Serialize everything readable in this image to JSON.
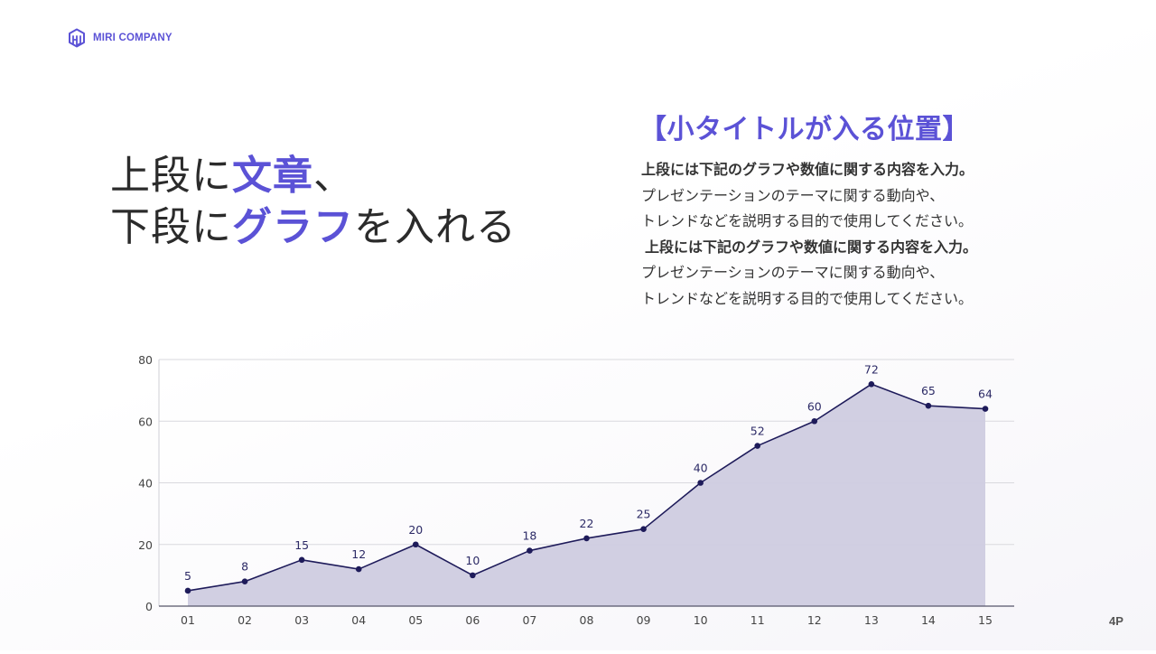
{
  "brand": {
    "logo_icon": "hexagon-hw-logo-icon",
    "name": "MIRI COMPANY",
    "accent_color": "#5b52d6"
  },
  "headline": {
    "line1_pre": "上段に",
    "line1_accent": "文章",
    "line1_post": "、",
    "line2_pre": "下段に",
    "line2_accent": "グラフ",
    "line2_post": "を入れる"
  },
  "subtitle": "【小タイトルが入る位置】",
  "body": {
    "lines": [
      {
        "text": "上段には下記のグラフや数値に関する内容を入力。",
        "bold": true
      },
      {
        "text": "プレゼンテーションのテーマに関する動向や、",
        "bold": false
      },
      {
        "text": "トレンドなどを説明する目的で使用してください。",
        "bold": false
      },
      {
        "text": "上段には下記のグラフや数値に関する内容を入力。",
        "bold": true
      },
      {
        "text": "プレゼンテーションのテーマに関する動向や、",
        "bold": false
      },
      {
        "text": "トレンドなどを説明する目的で使用してください。",
        "bold": false
      }
    ]
  },
  "chart_data": {
    "type": "area",
    "title": "",
    "xlabel": "",
    "ylabel": "",
    "categories": [
      "01",
      "02",
      "03",
      "04",
      "05",
      "06",
      "07",
      "08",
      "09",
      "10",
      "11",
      "12",
      "13",
      "14",
      "15"
    ],
    "series": [
      {
        "name": "",
        "values": [
          5,
          8,
          15,
          12,
          20,
          10,
          18,
          22,
          25,
          40,
          52,
          60,
          72,
          65,
          64
        ]
      }
    ],
    "ylim": [
      0,
      80
    ],
    "yticks": [
      0,
      20,
      40,
      60,
      80
    ],
    "grid": true,
    "data_labels": true,
    "legend": "none",
    "colors": {
      "line": "#1e1b5a",
      "fill": "#cfcce0",
      "marker": "#1e1b5a",
      "label": "#2c2a66"
    }
  },
  "page": {
    "number": "4P"
  }
}
